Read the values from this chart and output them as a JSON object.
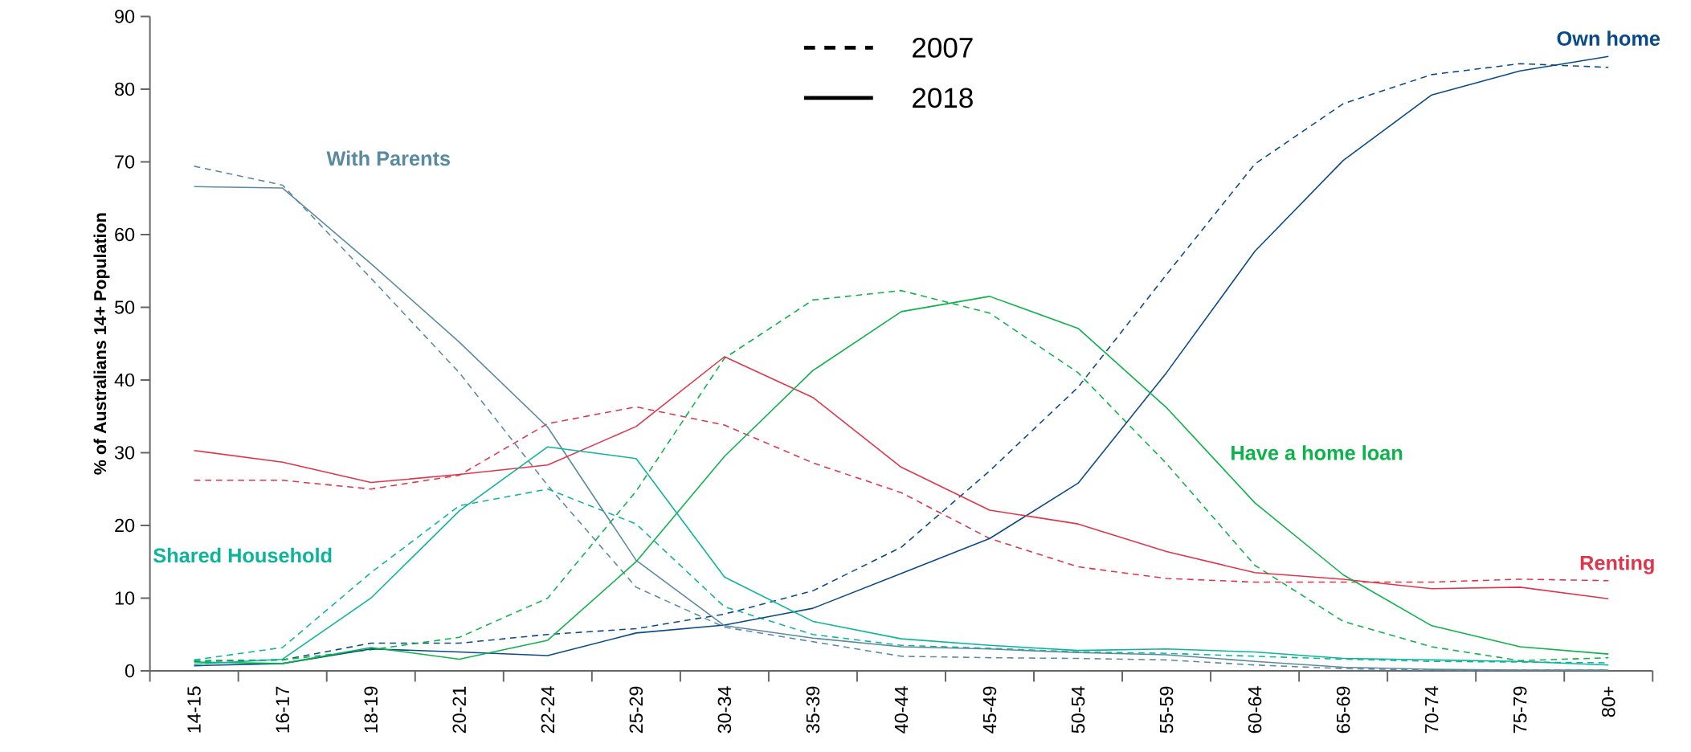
{
  "chart_data": {
    "type": "line",
    "ylabel": "% of Australians 14+ Population",
    "categories": [
      "14-15",
      "16-17",
      "18-19",
      "20-21",
      "22-24",
      "25-29",
      "30-34",
      "35-39",
      "40-44",
      "45-49",
      "50-54",
      "55-59",
      "60-64",
      "65-69",
      "70-74",
      "75-79",
      "80+"
    ],
    "ylim": [
      0,
      90
    ],
    "yticks": [
      0,
      10,
      20,
      30,
      40,
      50,
      60,
      70,
      80,
      90
    ],
    "annotations": [
      "2007",
      "2018"
    ],
    "series": [
      {
        "color": "#0a4a8a",
        "line_style": "dashed",
        "values": [
          1.3,
          1.5,
          3.8,
          3.8,
          5.0,
          5.8,
          7.8,
          11.0,
          17.0,
          27.5,
          39.0,
          54.5,
          69.7,
          78.0,
          82.0,
          83.5,
          83.0
        ]
      },
      {
        "color": "#5a8aa0",
        "line_style": "dashed",
        "values": [
          69.4,
          66.8,
          54,
          41,
          25.5,
          11.5,
          6.0,
          4.0,
          2.0,
          1.8,
          1.7,
          1.5,
          0.8,
          0.3,
          0.1,
          0.1,
          0.1
        ]
      },
      {
        "color": "#e0354a",
        "line_style": "dashed",
        "values": [
          26.2,
          26.2,
          25.0,
          26.9,
          34.0,
          36.3,
          33.8,
          28.6,
          24.5,
          18.2,
          14.3,
          12.7,
          12.2,
          12.2,
          12.2,
          12.6,
          12.4
        ]
      },
      {
        "color": "#0cb34a",
        "line_style": "dashed",
        "values": [
          1.4,
          1.5,
          2.9,
          4.6,
          10.0,
          24.7,
          43.0,
          51.0,
          52.3,
          49.2,
          41.0,
          28.5,
          14.5,
          6.8,
          3.3,
          1.4,
          1.8
        ]
      },
      {
        "color": "#0cb59a",
        "line_style": "dashed",
        "values": [
          1.5,
          3.2,
          13.5,
          22.7,
          25.0,
          20.2,
          8.8,
          5.0,
          3.5,
          3.1,
          2.6,
          2.4,
          2.0,
          1.6,
          1.3,
          1.2,
          1.1
        ]
      },
      {
        "name": "Own home",
        "color": "#0a4a8a",
        "line_style": "solid",
        "values": [
          0.7,
          1.0,
          3.0,
          2.6,
          2.1,
          5.2,
          6.3,
          8.6,
          13.4,
          18.2,
          25.8,
          41.0,
          57.7,
          70.2,
          79.2,
          82.5,
          84.5
        ]
      },
      {
        "name": "With Parents",
        "color": "#5a8aa0",
        "line_style": "solid",
        "values": [
          66.6,
          66.4,
          56,
          45.2,
          33.5,
          15.2,
          6.2,
          4.5,
          3.3,
          3.0,
          2.5,
          2.2,
          1.3,
          0.5,
          0.2,
          0.1,
          0.1
        ]
      },
      {
        "name": "Renting",
        "color": "#e0354a",
        "line_style": "solid",
        "values": [
          30.3,
          28.7,
          25.9,
          27.0,
          28.3,
          33.6,
          43.2,
          37.6,
          28.0,
          22.1,
          20.2,
          16.4,
          13.5,
          12.6,
          11.3,
          11.5,
          9.9
        ]
      },
      {
        "name": "Have a home loan",
        "color": "#0cb34a",
        "line_style": "solid",
        "values": [
          1.2,
          1.0,
          3.2,
          1.6,
          4.2,
          15.0,
          29.5,
          41.3,
          49.4,
          51.5,
          47.1,
          36.2,
          23.1,
          13.2,
          6.2,
          3.3,
          2.3
        ]
      },
      {
        "name": "Shared Household",
        "color": "#0cb59a",
        "line_style": "solid",
        "values": [
          0.9,
          1.6,
          10.0,
          22.0,
          30.8,
          29.2,
          12.9,
          6.8,
          4.4,
          3.5,
          2.8,
          3.0,
          2.6,
          1.7,
          1.5,
          1.3,
          0.8
        ]
      }
    ]
  }
}
